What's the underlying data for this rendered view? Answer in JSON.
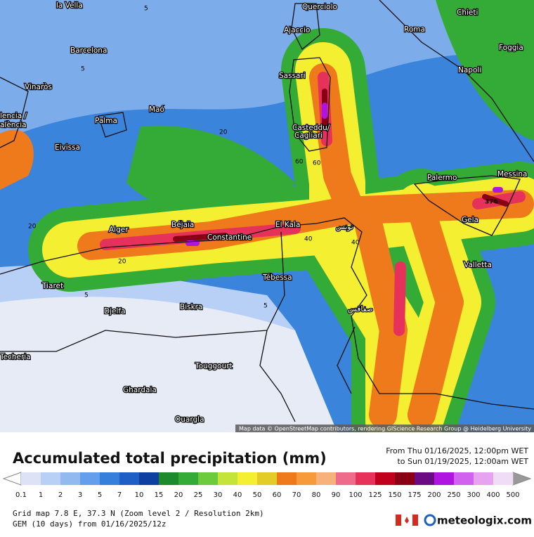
{
  "header": {
    "title": "Accumulated total precipitation (mm)",
    "from": "From Thu 01/16/2025, 12:00pm WET",
    "to": "to Sun 01/19/2025, 12:00am WET"
  },
  "legend": {
    "labels": [
      "0.1",
      "1",
      "2",
      "3",
      "5",
      "7",
      "10",
      "15",
      "20",
      "25",
      "30",
      "40",
      "50",
      "60",
      "70",
      "80",
      "90",
      "100",
      "125",
      "150",
      "175",
      "200",
      "250",
      "300",
      "400",
      "500"
    ],
    "colors": [
      "#dde2f7",
      "#b8d0f6",
      "#92b9f0",
      "#639fea",
      "#3680dc",
      "#1d5fc4",
      "#0d40a0",
      "#1e8a2e",
      "#34ab36",
      "#6ccb3c",
      "#c4e43a",
      "#f4ef30",
      "#e3cc28",
      "#ee7a1c",
      "#f69a3c",
      "#f7b27c",
      "#ef6b8c",
      "#e6325a",
      "#c0001c",
      "#8a0014",
      "#6c0a84",
      "#b014e0",
      "#d162f0",
      "#e6a3f0",
      "#f1dcf6"
    ]
  },
  "map": {
    "cities": [
      "la Vella",
      "Querciolo",
      "Chieti",
      "Ajaccio",
      "Roma",
      "Barcelona",
      "Foggia",
      "Napoli",
      "Sassari",
      "Vinaròs",
      "Maó",
      "Palma",
      "Casteddu/",
      "Cagliari",
      "lencia /",
      "alència",
      "Eivissa",
      "Palermo",
      "Messina",
      "Gela",
      "Alger",
      "Béjaïa",
      "Constantine",
      "El Kala",
      "تونس",
      "Valletta",
      "Tiaret",
      "Tébessa",
      "Djelfa",
      "Biskra",
      "صفاقس",
      "Touggourt",
      "Ghardaia",
      "Ouargla",
      "Techeria"
    ],
    "contour_labels": [
      "5",
      "5",
      "20",
      "20",
      "60",
      "60",
      "40",
      "40",
      "20",
      "376",
      "5",
      "5"
    ],
    "attribution": "Map data © OpenStreetMap contributors, rendering GIScience Research Group @ Heidelberg University"
  },
  "footer": {
    "grid": "Grid map 7.8 E, 37.3 N (Zoom level 2 / Resolution 2km)",
    "model": "GEM (10 days) from 01/16/2025/12z",
    "brand": "meteologix.com"
  }
}
